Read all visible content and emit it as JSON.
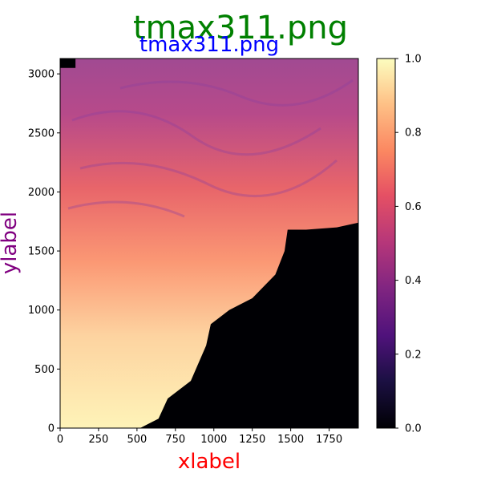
{
  "figure": {
    "suptitle": "tmax311.png",
    "title": "tmax311.png",
    "xlabel": "xlabel",
    "ylabel": "ylabel",
    "colors": {
      "suptitle": "#008000",
      "title": "#0000ff",
      "xlabel": "#ff0000",
      "ylabel": "#800080"
    }
  },
  "chart_data": {
    "type": "heatmap",
    "title": "tmax311.png",
    "xlabel": "xlabel",
    "ylabel": "ylabel",
    "colormap": "magma",
    "xlim": [
      0,
      1940
    ],
    "ylim": [
      0,
      3130
    ],
    "x_ticks": [
      0,
      250,
      500,
      750,
      1000,
      1250,
      1500,
      1750
    ],
    "x_tick_labels": [
      "0",
      "250",
      "500",
      "750",
      "1000",
      "1250",
      "1500",
      "1750"
    ],
    "y_ticks": [
      0,
      500,
      1000,
      1500,
      2000,
      2500,
      3000
    ],
    "y_tick_labels": [
      "0",
      "500",
      "1000",
      "1500",
      "2000",
      "2500",
      "3000"
    ],
    "colorbar": {
      "range": [
        0,
        1
      ],
      "ticks": [
        0,
        0.2,
        0.4,
        0.6,
        0.8,
        1.0
      ],
      "tick_labels": [
        "0.0",
        "0.2",
        "0.4",
        "0.6",
        "0.8",
        "1.0"
      ]
    },
    "value_estimates": {
      "no_data_value": 0.0,
      "no_data_boundary": [
        [
          520,
          0
        ],
        [
          640,
          80
        ],
        [
          700,
          250
        ],
        [
          850,
          400
        ],
        [
          950,
          700
        ],
        [
          980,
          880
        ],
        [
          1100,
          1000
        ],
        [
          1250,
          1100
        ],
        [
          1400,
          1300
        ],
        [
          1460,
          1500
        ],
        [
          1480,
          1680
        ],
        [
          1600,
          1680
        ],
        [
          1800,
          1700
        ],
        [
          1940,
          1740
        ]
      ],
      "no_data_top_left": [
        [
          0,
          3050
        ],
        [
          100,
          3050
        ],
        [
          100,
          3130
        ],
        [
          0,
          3130
        ]
      ],
      "gradient": [
        {
          "y": 100,
          "value": 0.95
        },
        {
          "y": 600,
          "value": 0.9
        },
        {
          "y": 1100,
          "value": 0.8
        },
        {
          "y": 1600,
          "value": 0.65
        },
        {
          "y": 2100,
          "value": 0.55
        },
        {
          "y": 2600,
          "value": 0.4
        },
        {
          "y": 3000,
          "value": 0.4
        }
      ]
    }
  }
}
